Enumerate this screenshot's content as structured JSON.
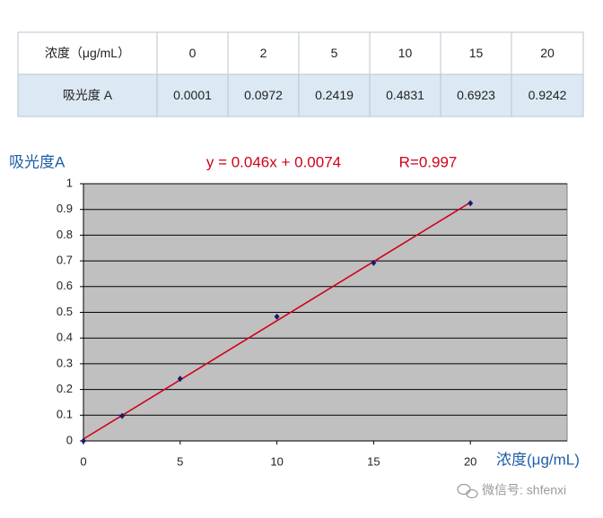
{
  "table": {
    "rows": [
      [
        "浓度（μg/mL）",
        0,
        2,
        5,
        10,
        15,
        20
      ],
      [
        "吸光度 A",
        0.0001,
        0.0972,
        0.2419,
        0.4831,
        0.6923,
        0.9242
      ]
    ]
  },
  "chart_data": {
    "type": "scatter",
    "y_label": "吸光度A",
    "x_label": "浓度(μg/mL)",
    "annotations": [
      "y = 0.046x + 0.0074",
      "R=0.997"
    ],
    "x": [
      0,
      2,
      5,
      10,
      15,
      20
    ],
    "values": [
      0.0001,
      0.0972,
      0.2419,
      0.4831,
      0.6923,
      0.9242
    ],
    "color": "#1a1a70",
    "trendline": {
      "x": [
        0,
        20
      ],
      "values": [
        0.0074,
        0.9274
      ],
      "color": "#d0021b"
    },
    "xlim": [
      0,
      25
    ],
    "xticks": [
      0,
      5,
      10,
      15,
      20
    ],
    "ylim": [
      0,
      1
    ],
    "yticks": [
      0,
      0.1,
      0.2,
      0.3,
      0.4,
      0.5,
      0.6,
      0.7,
      0.8,
      0.9,
      1
    ],
    "grid": true,
    "background": "#c0c0c0"
  },
  "watermark": "微信号: shfenxi"
}
